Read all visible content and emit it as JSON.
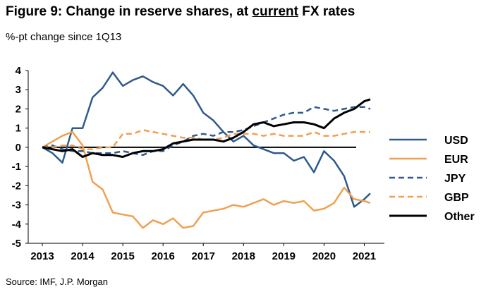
{
  "header": {
    "title_prefix": "Figure 9: Change in reserve shares, at ",
    "title_underlined": "current",
    "title_suffix": " FX rates",
    "subtitle": "%-pt change since 1Q13"
  },
  "footer": {
    "source": "Source: IMF, J.P. Morgan"
  },
  "chart_data": {
    "type": "line",
    "title": "Figure 9: Change in reserve shares, at current FX rates",
    "ylabel": "%-pt change since 1Q13",
    "xlabel": "",
    "xlim": [
      2013,
      2021.5
    ],
    "ylim": [
      -5,
      4
    ],
    "x_ticks": [
      "2013",
      "2014",
      "2015",
      "2016",
      "2017",
      "2018",
      "2019",
      "2020",
      "2021"
    ],
    "y_ticks": [
      "-5",
      "-4",
      "-3",
      "-2",
      "-1",
      "0",
      "1",
      "2",
      "3",
      "4"
    ],
    "zero_line": true,
    "legend_position": "right",
    "x": [
      2013.0,
      2013.25,
      2013.5,
      2013.75,
      2014.0,
      2014.25,
      2014.5,
      2014.75,
      2015.0,
      2015.25,
      2015.5,
      2015.75,
      2016.0,
      2016.25,
      2016.5,
      2016.75,
      2017.0,
      2017.25,
      2017.5,
      2017.75,
      2018.0,
      2018.25,
      2018.5,
      2018.75,
      2019.0,
      2019.25,
      2019.5,
      2019.75,
      2020.0,
      2020.25,
      2020.5,
      2020.75,
      2021.0,
      2021.15
    ],
    "series": [
      {
        "name": "USD",
        "color": "#2e5a8c",
        "dash": "solid",
        "values": [
          0.0,
          -0.3,
          -0.8,
          1.0,
          1.0,
          2.6,
          3.1,
          3.9,
          3.2,
          3.5,
          3.7,
          3.4,
          3.2,
          2.7,
          3.3,
          2.7,
          1.8,
          1.4,
          0.8,
          0.3,
          0.6,
          0.1,
          -0.1,
          -0.3,
          -0.3,
          -0.7,
          -0.5,
          -1.3,
          -0.2,
          -0.7,
          -1.5,
          -3.1,
          -2.7,
          -2.4
        ]
      },
      {
        "name": "EUR",
        "color": "#f0a050",
        "dash": "solid",
        "values": [
          0.0,
          0.3,
          0.6,
          0.8,
          0.1,
          -1.8,
          -2.2,
          -3.4,
          -3.5,
          -3.6,
          -4.2,
          -3.8,
          -4.0,
          -3.7,
          -4.2,
          -4.1,
          -3.4,
          -3.3,
          -3.2,
          -3.0,
          -3.1,
          -2.9,
          -2.7,
          -3.0,
          -2.8,
          -2.9,
          -2.8,
          -3.3,
          -3.2,
          -2.9,
          -2.1,
          -2.7,
          -2.8,
          -2.9
        ]
      },
      {
        "name": "JPY",
        "color": "#2e5a8c",
        "dash": "dashed",
        "values": [
          0.0,
          0.1,
          -0.1,
          -0.2,
          -0.2,
          -0.3,
          -0.3,
          -0.3,
          -0.2,
          -0.3,
          -0.4,
          -0.2,
          -0.2,
          0.1,
          0.3,
          0.6,
          0.7,
          0.6,
          0.8,
          0.8,
          0.9,
          1.1,
          1.3,
          1.5,
          1.7,
          1.8,
          1.8,
          2.1,
          2.0,
          1.9,
          2.0,
          2.1,
          2.1,
          2.0
        ]
      },
      {
        "name": "GBP",
        "color": "#f0a050",
        "dash": "dashed",
        "values": [
          0.0,
          0.0,
          0.1,
          0.1,
          -0.1,
          -0.1,
          0.0,
          0.0,
          0.7,
          0.7,
          0.9,
          0.8,
          0.7,
          0.6,
          0.5,
          0.5,
          0.4,
          0.4,
          0.5,
          0.7,
          0.7,
          0.7,
          0.6,
          0.7,
          0.6,
          0.6,
          0.6,
          0.8,
          0.6,
          0.6,
          0.7,
          0.8,
          0.8,
          0.8
        ]
      },
      {
        "name": "Other",
        "color": "#000000",
        "dash": "solid",
        "values": [
          0.0,
          -0.1,
          -0.2,
          -0.1,
          -0.5,
          -0.3,
          -0.4,
          -0.4,
          -0.5,
          -0.3,
          -0.2,
          -0.2,
          -0.1,
          0.2,
          0.3,
          0.4,
          0.4,
          0.4,
          0.3,
          0.5,
          0.8,
          1.2,
          1.3,
          1.1,
          1.2,
          1.3,
          1.3,
          1.2,
          1.0,
          1.5,
          1.8,
          2.0,
          2.4,
          2.5
        ]
      }
    ]
  }
}
